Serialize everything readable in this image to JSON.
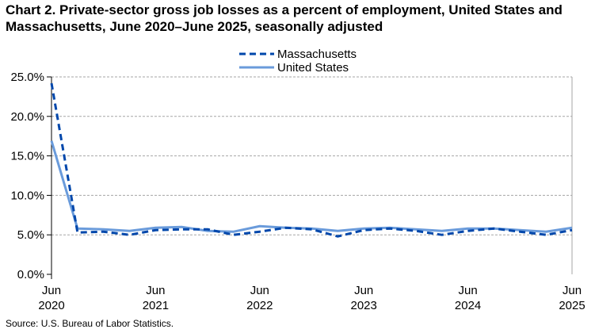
{
  "chart_data": {
    "type": "line",
    "title": "Chart 2. Private-sector gross job losses as a percent of employment, United States and Massachusetts, June 2020–June 2025, seasonally adjusted",
    "source": "Source: U.S. Bureau of Labor Statistics.",
    "x": [
      "Jun 2020",
      "Sep 2020",
      "Dec 2020",
      "Mar 2021",
      "Jun 2021",
      "Sep 2021",
      "Dec 2021",
      "Mar 2022",
      "Jun 2022",
      "Sep 2022",
      "Dec 2022",
      "Mar 2023",
      "Jun 2023",
      "Sep 2023",
      "Dec 2023",
      "Mar 2024",
      "Jun 2024",
      "Sep 2024",
      "Dec 2024",
      "Mar 2025",
      "Jun 2025"
    ],
    "x_tick_labels": [
      {
        "index": 0,
        "month": "Jun",
        "year": "2020"
      },
      {
        "index": 4,
        "month": "Jun",
        "year": "2021"
      },
      {
        "index": 8,
        "month": "Jun",
        "year": "2022"
      },
      {
        "index": 12,
        "month": "Jun",
        "year": "2023"
      },
      {
        "index": 16,
        "month": "Jun",
        "year": "2024"
      },
      {
        "index": 20,
        "month": "Jun",
        "year": "2025"
      }
    ],
    "y_ticks": [
      "0.0%",
      "5.0%",
      "10.0%",
      "15.0%",
      "20.0%",
      "25.0%"
    ],
    "ylim": [
      0,
      25
    ],
    "grid": "horizontal dashed",
    "legend": "top-center",
    "series": [
      {
        "name": "Massachusetts",
        "color": "#0047AB",
        "style": "dashed",
        "values": [
          24.2,
          5.3,
          5.4,
          5.0,
          5.6,
          5.7,
          5.7,
          5.0,
          5.4,
          5.9,
          5.7,
          4.8,
          5.6,
          5.8,
          5.5,
          5.0,
          5.5,
          5.8,
          5.4,
          5.0,
          5.6
        ]
      },
      {
        "name": "United States",
        "color": "#6A9BDB",
        "style": "solid",
        "values": [
          16.9,
          5.8,
          5.7,
          5.5,
          5.9,
          6.0,
          5.5,
          5.4,
          6.1,
          5.9,
          5.8,
          5.5,
          5.8,
          5.9,
          5.7,
          5.5,
          5.8,
          5.8,
          5.6,
          5.4,
          5.9
        ]
      }
    ]
  }
}
